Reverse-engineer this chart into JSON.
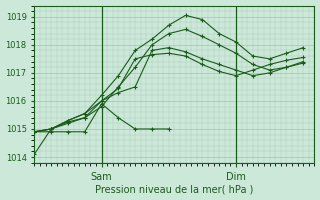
{
  "xlabel": "Pression niveau de la mer( hPa )",
  "ylim": [
    1013.8,
    1019.4
  ],
  "xlim": [
    0,
    50
  ],
  "bg_color": "#cce8d8",
  "plot_bg_color": "#cce8d8",
  "line_color": "#1a5c1a",
  "grid_color": "#a8c8b8",
  "yticks": [
    1014,
    1015,
    1016,
    1017,
    1018,
    1019
  ],
  "xtick_positions": [
    12,
    36
  ],
  "xtick_labels": [
    "Sam",
    "Dim"
  ],
  "vline_positions": [
    12,
    36
  ],
  "series": [
    {
      "x": [
        0,
        3,
        6,
        9,
        12,
        15,
        18,
        21,
        24,
        27,
        30,
        33,
        36,
        39,
        42,
        45,
        48
      ],
      "y": [
        1014.1,
        1015.0,
        1015.2,
        1015.4,
        1015.8,
        1016.5,
        1017.2,
        1018.0,
        1018.4,
        1018.55,
        1018.3,
        1018.0,
        1017.7,
        1017.3,
        1017.1,
        1017.2,
        1017.4
      ]
    },
    {
      "x": [
        0,
        3,
        6,
        9,
        12,
        15,
        18,
        21,
        24
      ],
      "y": [
        1014.9,
        1014.9,
        1014.9,
        1014.9,
        1015.9,
        1015.4,
        1015.0,
        1015.0,
        1015.0
      ]
    },
    {
      "x": [
        0,
        3,
        6,
        9,
        12,
        15,
        18,
        21,
        24,
        27,
        30,
        33,
        36,
        39,
        42,
        45,
        48
      ],
      "y": [
        1014.9,
        1015.0,
        1015.25,
        1015.4,
        1016.0,
        1016.3,
        1016.5,
        1017.8,
        1017.9,
        1017.75,
        1017.5,
        1017.3,
        1017.1,
        1016.9,
        1017.0,
        1017.2,
        1017.35
      ]
    },
    {
      "x": [
        0,
        3,
        6,
        9,
        12,
        15,
        18,
        21,
        24,
        27,
        30,
        33,
        36,
        39,
        42,
        45,
        48
      ],
      "y": [
        1014.9,
        1015.0,
        1015.3,
        1015.55,
        1016.2,
        1016.9,
        1017.8,
        1018.2,
        1018.7,
        1019.05,
        1018.9,
        1018.4,
        1018.1,
        1017.6,
        1017.5,
        1017.7,
        1017.9
      ]
    },
    {
      "x": [
        0,
        3,
        6,
        9,
        12,
        15,
        18,
        21,
        24,
        27,
        30,
        33,
        36,
        39,
        42,
        45,
        48
      ],
      "y": [
        1014.9,
        1015.0,
        1015.3,
        1015.55,
        1016.0,
        1016.45,
        1017.5,
        1017.65,
        1017.7,
        1017.6,
        1017.3,
        1017.05,
        1016.9,
        1017.1,
        1017.3,
        1017.45,
        1017.55
      ]
    }
  ]
}
